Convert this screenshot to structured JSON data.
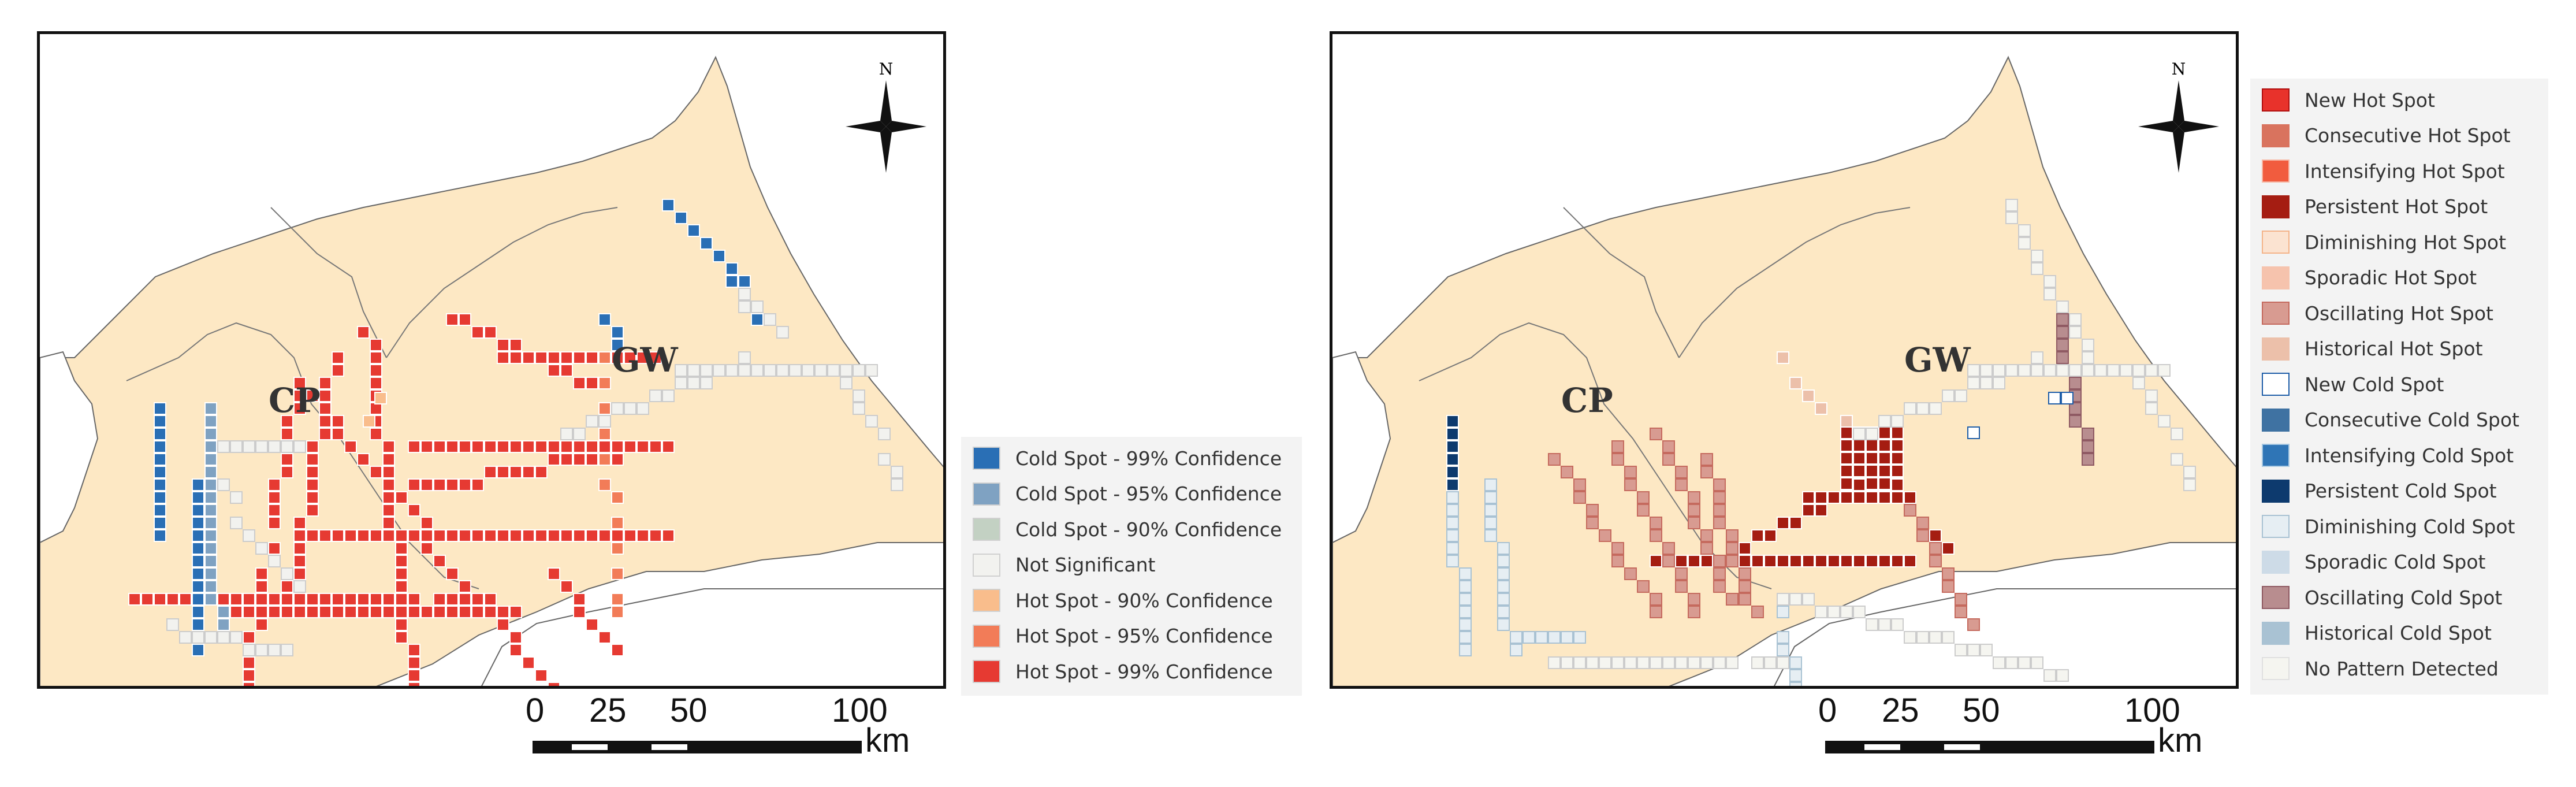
{
  "left_map": {
    "labels": {
      "cp": "CP",
      "gw": "GW"
    },
    "north": "N",
    "scale": {
      "ticks": [
        "0",
        "25",
        "50",
        "100"
      ],
      "unit": "km"
    },
    "legend": [
      {
        "label": "Cold Spot - 99% Confidence",
        "color": "#2a6fb5"
      },
      {
        "label": "Cold Spot - 95% Confidence",
        "color": "#7fa2c2"
      },
      {
        "label": "Cold Spot - 90% Confidence",
        "color": "#c3d1c3"
      },
      {
        "label": "Not Significant",
        "color": "#f2f2ef"
      },
      {
        "label": "Hot Spot - 90% Confidence",
        "color": "#f9bd8c"
      },
      {
        "label": "Hot Spot - 95% Confidence",
        "color": "#f27c58"
      },
      {
        "label": "Hot Spot - 99% Confidence",
        "color": "#e63a32"
      }
    ]
  },
  "right_map": {
    "labels": {
      "cp": "CP",
      "gw": "GW"
    },
    "north": "N",
    "scale": {
      "ticks": [
        "0",
        "25",
        "50",
        "100"
      ],
      "unit": "km"
    },
    "legend": [
      {
        "label": "New Hot Spot",
        "color": "#e8322b",
        "border": "#b01010"
      },
      {
        "label": "Consecutive Hot Spot",
        "color": "#d9735e",
        "border": "#d9735e"
      },
      {
        "label": "Intensifying Hot Spot",
        "color": "#f15c3e",
        "border": "#f7b9a6"
      },
      {
        "label": "Persistent Hot Spot",
        "color": "#a51d12",
        "border": "#a51d12"
      },
      {
        "label": "Diminishing Hot Spot",
        "color": "#fbe3d1",
        "border": "#f4b48a"
      },
      {
        "label": "Sporadic Hot Spot",
        "color": "#f6c3ad",
        "border": "#f6c3ad"
      },
      {
        "label": "Oscillating Hot Spot",
        "color": "#d89b91",
        "border": "#c56a5e"
      },
      {
        "label": "Historical Hot Spot",
        "color": "#ecc0aa",
        "border": "#ecc0aa"
      },
      {
        "label": "New Cold Spot",
        "color": "#ffffff",
        "border": "#1f5ea8"
      },
      {
        "label": "Consecutive Cold Spot",
        "color": "#3f72a2",
        "border": "#3f72a2"
      },
      {
        "label": "Intensifying Cold Spot",
        "color": "#2f75b6",
        "border": "#a9c9e2"
      },
      {
        "label": "Persistent Cold Spot",
        "color": "#0d3a6e",
        "border": "#0d3a6e"
      },
      {
        "label": "Diminishing Cold Spot",
        "color": "#e6eef3",
        "border": "#a9c2d3"
      },
      {
        "label": "Sporadic Cold Spot",
        "color": "#cddbe7",
        "border": "#cddbe7"
      },
      {
        "label": "Oscillating Cold Spot",
        "color": "#b88d8f",
        "border": "#8f5a63"
      },
      {
        "label": "Historical Cold Spot",
        "color": "#a9c2d3",
        "border": "#a9c2d3"
      },
      {
        "label": "No Pattern Detected",
        "color": "#f5f5f0",
        "border": "#e0e0e0"
      }
    ]
  }
}
